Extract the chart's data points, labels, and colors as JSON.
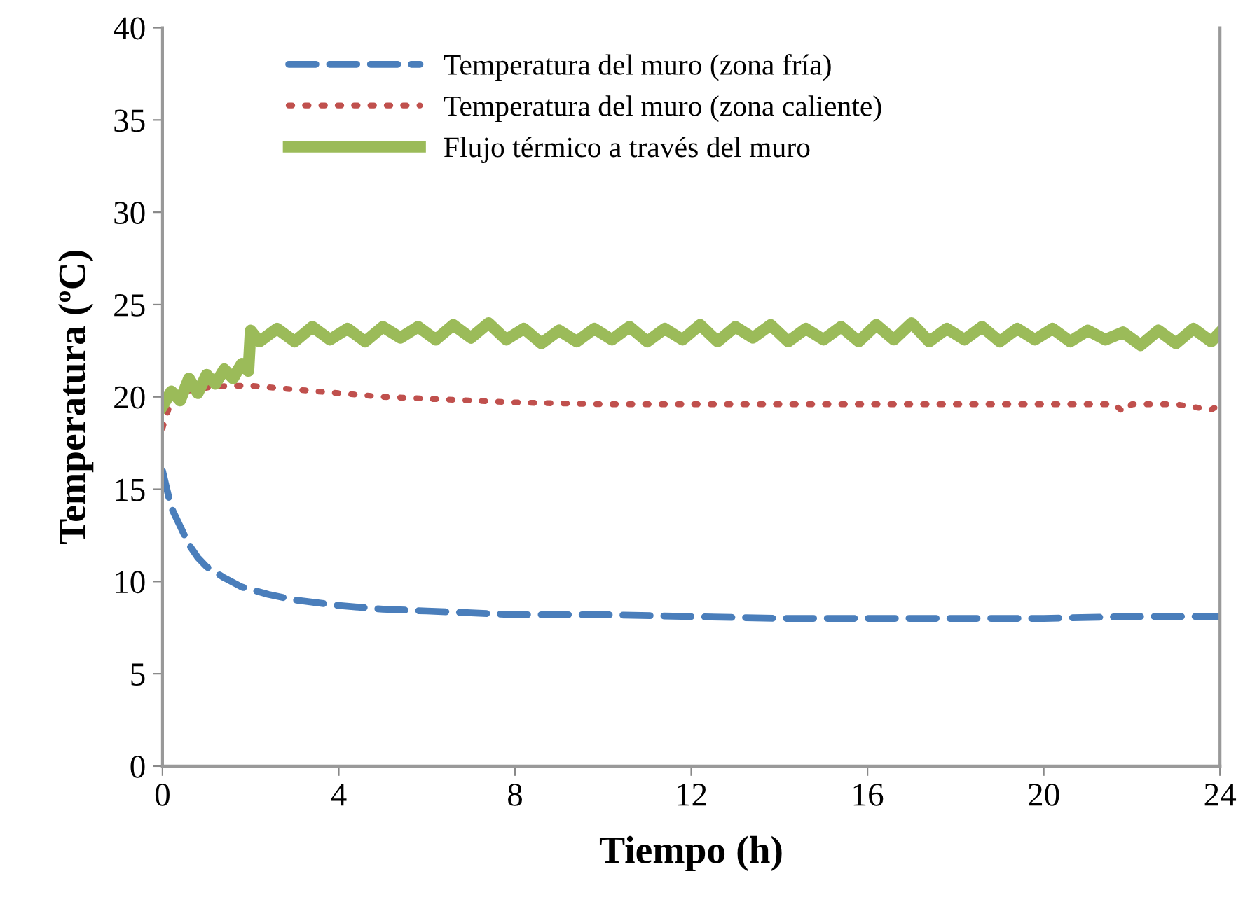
{
  "chart_data": {
    "type": "line",
    "xlabel": "Tiempo (h)",
    "ylabel": "Temperatura (ºC)",
    "xlim": [
      0,
      24
    ],
    "ylim": [
      0,
      40
    ],
    "xticks": [
      0,
      4,
      8,
      12,
      16,
      20,
      24
    ],
    "yticks": [
      0,
      5,
      10,
      15,
      20,
      25,
      30,
      35,
      40
    ],
    "grid": false,
    "legend": "top",
    "series": [
      {
        "name": "Temperatura del muro (zona fría)",
        "color": "#4a7ebb",
        "line_style": "dashed",
        "x": [
          0,
          0.1,
          0.2,
          0.4,
          0.6,
          0.8,
          1,
          1.4,
          1.8,
          2.4,
          3,
          4,
          5,
          6,
          8,
          10,
          12,
          14,
          16,
          18,
          20,
          22,
          24
        ],
        "values": [
          16,
          15,
          14,
          13,
          12,
          11.3,
          10.8,
          10.2,
          9.7,
          9.3,
          9.0,
          8.7,
          8.5,
          8.4,
          8.2,
          8.2,
          8.1,
          8.0,
          8.0,
          8.0,
          8.0,
          8.1,
          8.1
        ]
      },
      {
        "name": "Temperatura del muro (zona caliente)",
        "color": "#c0504d",
        "line_style": "dotted",
        "x": [
          0,
          0.2,
          0.5,
          1,
          1.5,
          2,
          3,
          4,
          5,
          6,
          8,
          10,
          12,
          14,
          16,
          18,
          20,
          21.6,
          21.8,
          22,
          23,
          23.8,
          24
        ],
        "values": [
          18.3,
          19.8,
          20.3,
          20.5,
          20.6,
          20.6,
          20.4,
          20.2,
          20.0,
          19.9,
          19.7,
          19.6,
          19.6,
          19.6,
          19.6,
          19.6,
          19.6,
          19.6,
          19.2,
          19.6,
          19.6,
          19.3,
          19.6
        ]
      },
      {
        "name": "Flujo térmico a través del muro",
        "color": "#9bbb59",
        "line_style": "solid",
        "x": [
          0,
          0.2,
          0.4,
          0.6,
          0.8,
          1,
          1.2,
          1.4,
          1.6,
          1.8,
          1.95,
          2,
          2.2,
          2.6,
          3,
          3.4,
          3.8,
          4.2,
          4.6,
          5,
          5.4,
          5.8,
          6.2,
          6.6,
          7,
          7.4,
          7.8,
          8.2,
          8.6,
          9,
          9.4,
          9.8,
          10.2,
          10.6,
          11,
          11.4,
          11.8,
          12.2,
          12.6,
          13,
          13.4,
          13.8,
          14.2,
          14.6,
          15,
          15.4,
          15.8,
          16.2,
          16.6,
          17,
          17.4,
          17.8,
          18.2,
          18.6,
          19,
          19.4,
          19.8,
          20.2,
          20.6,
          21,
          21.4,
          21.8,
          22.2,
          22.6,
          23,
          23.4,
          23.8,
          24
        ],
        "values": [
          19.5,
          20.3,
          19.8,
          21.0,
          20.2,
          21.2,
          20.7,
          21.5,
          21.0,
          21.8,
          21.4,
          23.6,
          23.0,
          23.7,
          23.0,
          23.8,
          23.1,
          23.7,
          23.0,
          23.8,
          23.2,
          23.8,
          23.1,
          23.9,
          23.2,
          24.0,
          23.1,
          23.7,
          22.9,
          23.6,
          23.0,
          23.7,
          23.1,
          23.8,
          23.0,
          23.7,
          23.1,
          23.9,
          23.0,
          23.8,
          23.2,
          23.9,
          23.0,
          23.7,
          23.1,
          23.8,
          23.0,
          23.9,
          23.1,
          24.0,
          23.0,
          23.7,
          23.1,
          23.8,
          23.0,
          23.7,
          23.1,
          23.7,
          23.0,
          23.6,
          23.1,
          23.5,
          22.8,
          23.6,
          22.9,
          23.7,
          23.0,
          23.5
        ]
      }
    ]
  }
}
